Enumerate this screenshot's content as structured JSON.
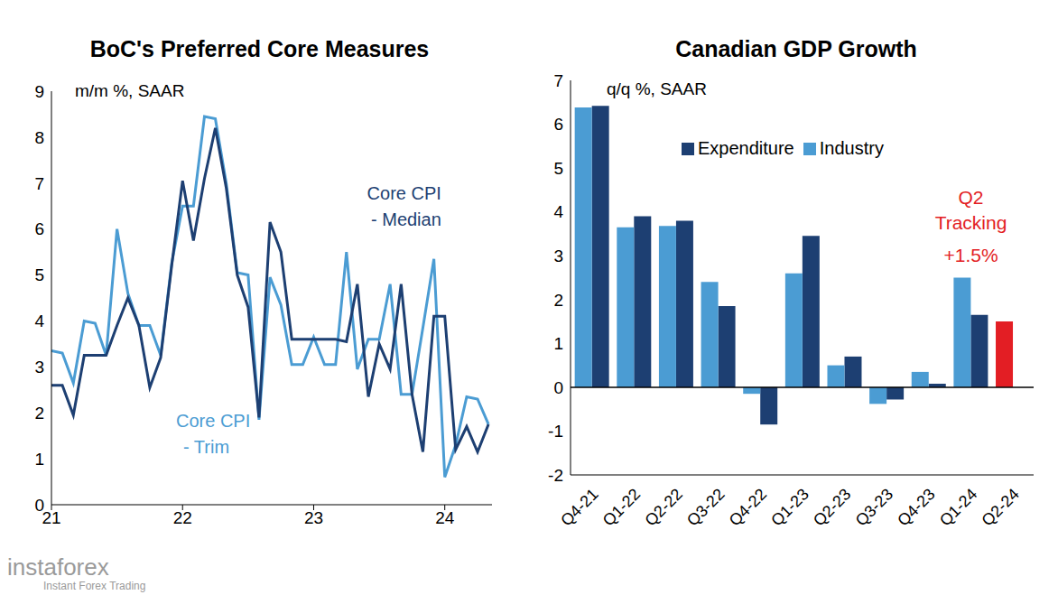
{
  "chart_data": [
    {
      "type": "line",
      "title": "BoC's Preferred Core Measures",
      "y_label": "m/m %, SAAR",
      "x": [
        21,
        21.083,
        21.167,
        21.25,
        21.333,
        21.417,
        21.5,
        21.583,
        21.667,
        21.75,
        21.833,
        21.917,
        22,
        22.083,
        22.167,
        22.25,
        22.333,
        22.417,
        22.5,
        22.583,
        22.667,
        22.75,
        22.833,
        22.917,
        23,
        23.083,
        23.167,
        23.25,
        23.333,
        23.417,
        23.5,
        23.583,
        23.667,
        23.75,
        23.833,
        23.917,
        24,
        24.083,
        24.167,
        24.25,
        24.333
      ],
      "xlim": [
        21,
        24.36
      ],
      "xticks": [
        21,
        22,
        23,
        24
      ],
      "ylim": [
        0,
        9
      ],
      "yticks": [
        0,
        1,
        2,
        3,
        4,
        5,
        6,
        7,
        8,
        9
      ],
      "series": [
        {
          "name": "Core CPI - Trim",
          "color": "#4b9cd3",
          "values": [
            3.35,
            3.3,
            2.65,
            4.0,
            3.95,
            3.25,
            6.0,
            4.6,
            3.9,
            3.9,
            3.25,
            5.25,
            6.5,
            6.5,
            8.45,
            8.4,
            7.0,
            5.05,
            5.0,
            1.85,
            4.95,
            4.35,
            3.05,
            3.05,
            3.65,
            3.05,
            3.05,
            5.5,
            2.95,
            3.6,
            3.6,
            4.8,
            2.4,
            2.4,
            3.85,
            5.35,
            0.6,
            1.3,
            2.35,
            2.3,
            1.75
          ]
        },
        {
          "name": "Core CPI - Median",
          "color": "#1d3f72",
          "values": [
            2.6,
            2.6,
            1.95,
            3.25,
            3.25,
            3.25,
            3.9,
            4.5,
            3.9,
            2.55,
            3.2,
            5.2,
            7.05,
            5.75,
            7.1,
            8.2,
            6.9,
            5.0,
            4.3,
            1.9,
            6.15,
            5.5,
            3.6,
            3.6,
            3.6,
            3.6,
            3.6,
            3.55,
            4.8,
            2.35,
            3.5,
            2.95,
            4.8,
            2.4,
            1.15,
            4.1,
            4.1,
            1.2,
            1.7,
            1.15,
            1.75
          ]
        }
      ]
    },
    {
      "type": "bar",
      "title": "Canadian GDP Growth",
      "y_label": "q/q %, SAAR",
      "categories": [
        "Q4-21",
        "Q1-22",
        "Q2-22",
        "Q3-22",
        "Q4-22",
        "Q1-23",
        "Q2-23",
        "Q3-23",
        "Q4-23",
        "Q1-24",
        "Q2-24"
      ],
      "ylim": [
        -2,
        7
      ],
      "yticks": [
        -2,
        -1,
        0,
        1,
        2,
        3,
        4,
        5,
        6,
        7
      ],
      "legend": "top",
      "series": [
        {
          "name": "Expenditure",
          "color": "#1d3f72",
          "values": [
            6.42,
            3.9,
            3.8,
            1.85,
            -0.85,
            3.45,
            0.7,
            -0.28,
            0.08,
            1.65,
            null
          ]
        },
        {
          "name": "Industry",
          "color": "#4b9cd3",
          "values": [
            6.38,
            3.65,
            3.68,
            2.4,
            -0.15,
            2.6,
            0.5,
            -0.38,
            0.35,
            2.5,
            null
          ]
        },
        {
          "name": "Q2 Tracking",
          "color": "#e31e24",
          "values": [
            null,
            null,
            null,
            null,
            null,
            null,
            null,
            null,
            null,
            null,
            1.5
          ],
          "value_labels": [
            null,
            null,
            null,
            null,
            null,
            null,
            null,
            null,
            null,
            null,
            "+1.5%"
          ]
        }
      ]
    }
  ],
  "watermark": {
    "text": "instaforex",
    "subtitle": "Instant Forex Trading"
  }
}
